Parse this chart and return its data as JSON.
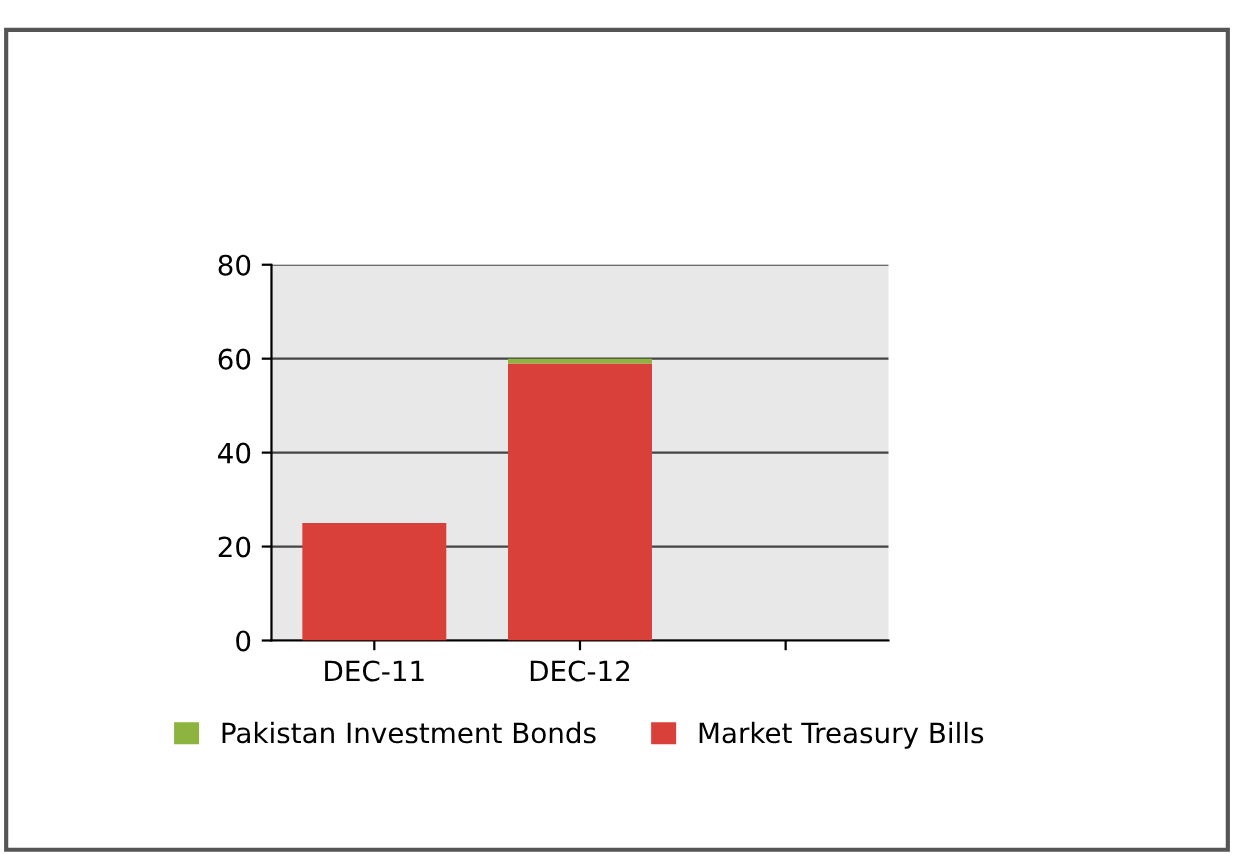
{
  "chart_data": {
    "type": "bar",
    "stacked": true,
    "categories": [
      "DEC-11",
      "DEC-12",
      null
    ],
    "series": [
      {
        "name": "Market Treasury Bills",
        "color": "#d9403a",
        "values": [
          25,
          59,
          null
        ]
      },
      {
        "name": "Pakistan Investment Bonds",
        "color": "#8db43e",
        "values": [
          0,
          1,
          null
        ]
      }
    ],
    "ylim": [
      0,
      80
    ],
    "yticks": [
      0,
      20,
      40,
      60,
      80
    ],
    "grid": "y",
    "legend": "bottom"
  }
}
